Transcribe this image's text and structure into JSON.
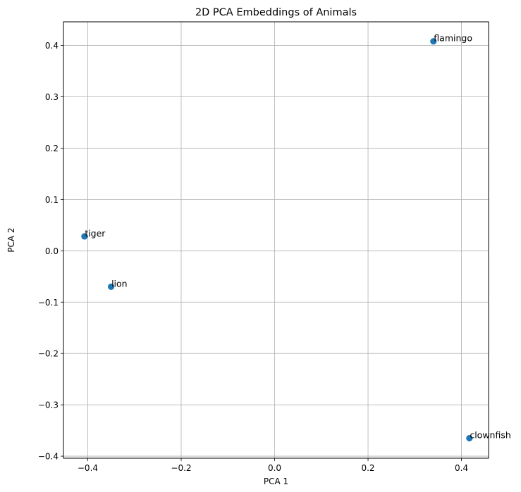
{
  "chart_data": {
    "type": "scatter",
    "title": "2D PCA Embeddings of Animals",
    "xlabel": "PCA 1",
    "ylabel": "PCA 2",
    "xlim": [
      -0.452,
      0.458
    ],
    "ylim": [
      -0.404,
      0.446
    ],
    "xticks": [
      -0.4,
      -0.2,
      0.0,
      0.2,
      0.4
    ],
    "xtick_labels": [
      "−0.4",
      "−0.2",
      "0.0",
      "0.2",
      "0.4"
    ],
    "yticks": [
      -0.4,
      -0.3,
      -0.2,
      -0.1,
      0.0,
      0.1,
      0.2,
      0.3,
      0.4
    ],
    "ytick_labels": [
      "−0.4",
      "−0.3",
      "−0.2",
      "−0.1",
      "0.0",
      "0.1",
      "0.2",
      "0.3",
      "0.4"
    ],
    "grid": true,
    "marker_color": "#1f77b4",
    "points": [
      {
        "label": "flamingo",
        "x": 0.34,
        "y": 0.408
      },
      {
        "label": "tiger",
        "x": -0.407,
        "y": 0.028
      },
      {
        "label": "lion",
        "x": -0.35,
        "y": -0.07
      },
      {
        "label": "clownfish",
        "x": 0.417,
        "y": -0.365
      }
    ]
  }
}
